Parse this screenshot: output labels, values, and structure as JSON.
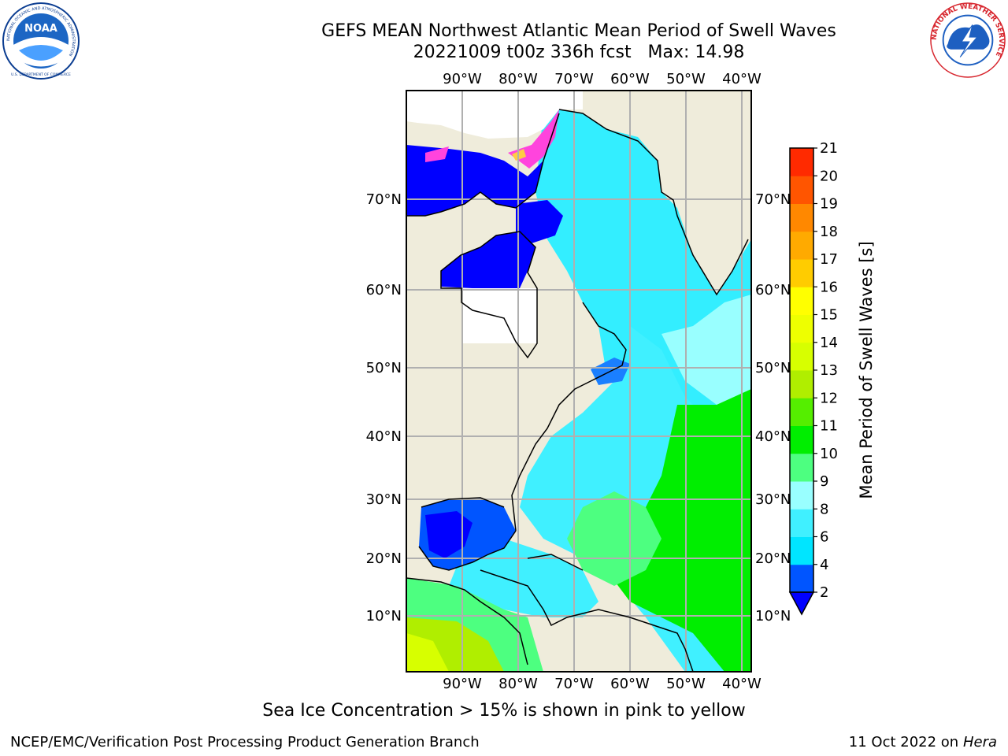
{
  "header": {
    "title_line1": "GEFS MEAN Northwest Atlantic Mean Period of Swell Waves",
    "title_line2": "20221009 t00z 336h fcst   Max: 14.98"
  },
  "logos": {
    "noaa_text": "NOAA",
    "noaa_ring_text": "NATIONAL OCEANIC AND ATMOSPHERIC ADMINISTRATION",
    "noaa_bottom_text": "U.S. DEPARTMENT OF COMMERCE",
    "nws_ring_text": "NATIONAL WEATHER SERVICE"
  },
  "map": {
    "lon_labels": [
      "90°W",
      "80°W",
      "70°W",
      "60°W",
      "50°W",
      "40°W"
    ],
    "lat_labels": [
      "70°N",
      "60°N",
      "50°N",
      "40°N",
      "30°N",
      "20°N",
      "10°N"
    ],
    "colors": {
      "land": "#efecdb",
      "grid": "#b0b0b0",
      "coast": "#000000"
    }
  },
  "colorbar": {
    "label": "Mean Period of Swell Waves [s]",
    "ticks": [
      "2",
      "4",
      "6",
      "8",
      "9",
      "10",
      "11",
      "12",
      "13",
      "14",
      "15",
      "16",
      "17",
      "18",
      "19",
      "20",
      "21"
    ],
    "colors": [
      "#0055ff",
      "#00e5ff",
      "#40f0ff",
      "#99ffff",
      "#4dff80",
      "#00ee00",
      "#55ee00",
      "#b0ee00",
      "#d7ff00",
      "#eeff00",
      "#ffff00",
      "#ffcc00",
      "#ffaa00",
      "#ff8800",
      "#ff5500",
      "#ff2a00",
      "#ff0000"
    ],
    "under_color": "#0000ff"
  },
  "note": "Sea Ice Concentration > 15% is shown in pink to yellow",
  "footer": {
    "left": "NCEP/EMC/Verification Post Processing Product Generation Branch",
    "right_date": "11 Oct 2022 on",
    "right_host": "Hera"
  }
}
